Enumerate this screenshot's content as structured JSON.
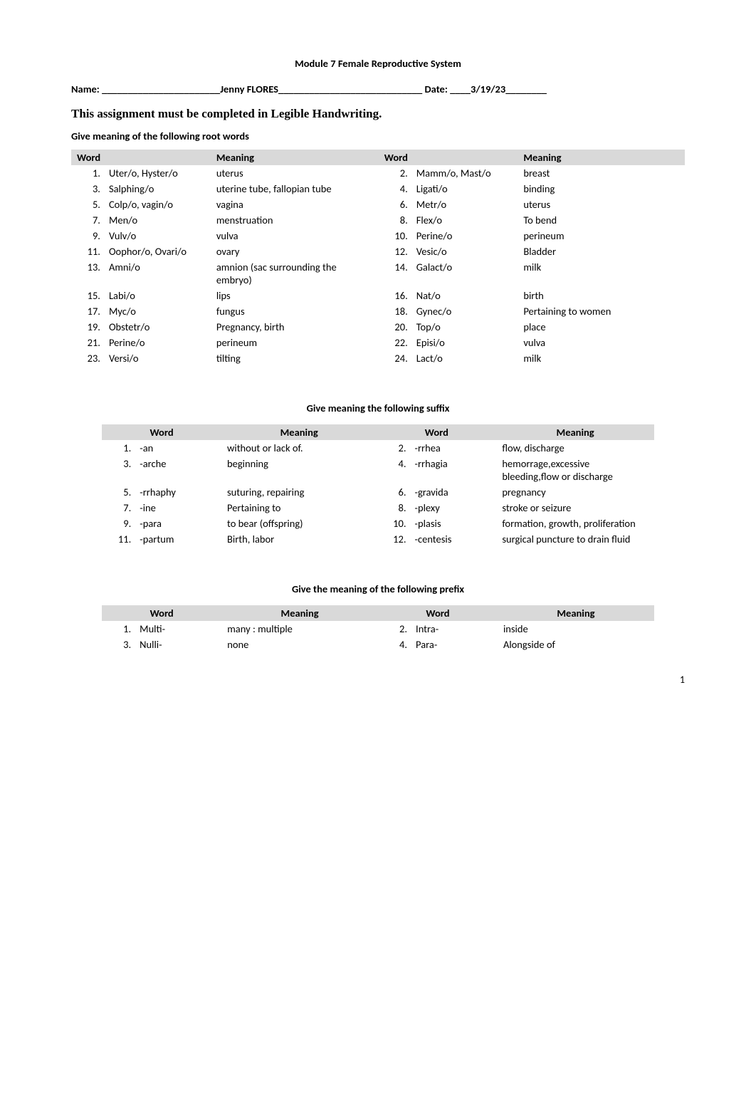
{
  "header": {
    "title": "Module 7 Female Reproductive System",
    "name_label": "Name: ",
    "name_line_prefix": "_______________________",
    "name_value": "Jenny FLORES",
    "name_line_mid": "____________________________ ",
    "date_label": "Date: ",
    "date_line_prefix": "____",
    "date_value": "3/19/23",
    "date_line_suffix": "________",
    "assignment_note": "This assignment must be completed in Legible Handwriting.",
    "root_heading": "Give meaning of the following root words"
  },
  "root_table": {
    "headers": {
      "word": "Word",
      "meaning": "Meaning",
      "word2": "Word",
      "meaning2": "Meaning"
    },
    "rows": [
      {
        "ln": "1.",
        "lw": "Uter/o, Hyster/o",
        "lm": "uterus",
        "rn": "2.",
        "rw": "Mamm/o, Mast/o",
        "rm": "breast"
      },
      {
        "ln": "3.",
        "lw": "Salphing/o",
        "lm": "uterine tube, fallopian tube",
        "rn": "4.",
        "rw": "Ligati/o",
        "rm": "binding"
      },
      {
        "ln": "5.",
        "lw": "Colp/o, vagin/o",
        "lm": "vagina",
        "rn": "6.",
        "rw": "Metr/o",
        "rm": "uterus"
      },
      {
        "ln": "7.",
        "lw": "Men/o",
        "lm": "menstruation",
        "rn": "8.",
        "rw": "Flex/o",
        "rm": "To bend"
      },
      {
        "ln": "9.",
        "lw": "Vulv/o",
        "lm": "vulva",
        "rn": "10.",
        "rw": "Perine/o",
        "rm": "perineum"
      },
      {
        "ln": "11.",
        "lw": "Oophor/o, Ovari/o",
        "lm": "ovary",
        "rn": "12.",
        "rw": "Vesic/o",
        "rm": "Bladder"
      },
      {
        "ln": "13.",
        "lw": "Amni/o",
        "lm": "amnion (sac surrounding the embryo)",
        "rn": "14.",
        "rw": "Galact/o",
        "rm": "milk"
      },
      {
        "ln": "15.",
        "lw": "Labi/o",
        "lm": "lips",
        "rn": "16.",
        "rw": "Nat/o",
        "rm": "birth"
      },
      {
        "ln": "17.",
        "lw": "Myc/o",
        "lm": "fungus",
        "rn": "18.",
        "rw": "Gynec/o",
        "rm": "Pertaining to women"
      },
      {
        "ln": "19.",
        "lw": "Obstetr/o",
        "lm": "Pregnancy, birth",
        "rn": "20.",
        "rw": "Top/o",
        "rm": "place"
      },
      {
        "ln": "21.",
        "lw": "Perine/o",
        "lm": "perineum",
        "rn": "22.",
        "rw": "Episi/o",
        "rm": "vulva"
      },
      {
        "ln": "23.",
        "lw": "Versi/o",
        "lm": "tilting",
        "rn": "24.",
        "rw": "Lact/o",
        "rm": "milk"
      }
    ]
  },
  "suffix_heading": "Give meaning the following suffix",
  "suffix_table": {
    "headers": {
      "word": "Word",
      "meaning": "Meaning",
      "word2": "Word",
      "meaning2": "Meaning"
    },
    "rows": [
      {
        "ln": "1.",
        "lw": "-an",
        "lm": "without or lack of.",
        "rn": "2.",
        "rw": "-rrhea",
        "rm": "flow, discharge"
      },
      {
        "ln": "3.",
        "lw": "-arche",
        "lm": "beginning",
        "rn": "4.",
        "rw": "-rrhagia",
        "rm": "hemorrage,excessive bleeding,flow or discharge"
      },
      {
        "ln": "5.",
        "lw": "-rrhaphy",
        "lm": "suturing, repairing",
        "rn": "6.",
        "rw": "-gravida",
        "rm": "pregnancy"
      },
      {
        "ln": "7.",
        "lw": "-ine",
        "lm": "Pertaining to",
        "rn": "8.",
        "rw": "-plexy",
        "rm": "stroke or seizure"
      },
      {
        "ln": "9.",
        "lw": "-para",
        "lm": "to bear (offspring)",
        "rn": "10.",
        "rw": "-plasis",
        "rm": "formation, growth, proliferation"
      },
      {
        "ln": "11.",
        "lw": "-partum",
        "lm": "Birth, labor",
        "rn": "12.",
        "rw": "-centesis",
        "rm": "surgical puncture to drain fluid"
      }
    ]
  },
  "prefix_heading": "Give the meaning of the following prefix",
  "prefix_table": {
    "headers": {
      "word": "Word",
      "meaning": "Meaning",
      "word2": "Word",
      "meaning2": "Meaning"
    },
    "rows": [
      {
        "ln": "1.",
        "lw": "Multi-",
        "lm": "many : multiple",
        "rn": "2.",
        "rw": "Intra-",
        "rm": "inside"
      },
      {
        "ln": "3.",
        "lw": "Nulli-",
        "lm": "none",
        "rn": "4.",
        "rw": "Para-",
        "rm": "Alongside of"
      }
    ]
  },
  "page_number": "1",
  "colors": {
    "header_bg": "#d9d9d9",
    "page_bg": "#ffffff",
    "text": "#000000"
  }
}
